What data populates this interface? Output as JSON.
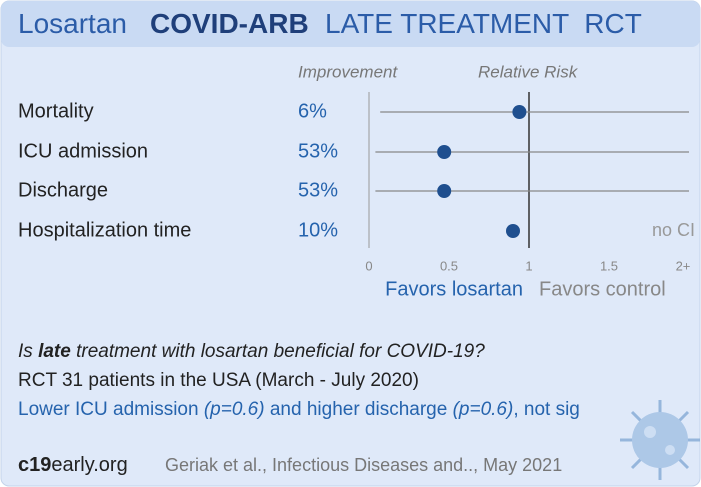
{
  "chart_data": {
    "type": "forest",
    "title": {
      "drug": "Losartan",
      "trial": "COVID-ARB",
      "rest": "LATE TREATMENT  RCT"
    },
    "column_headers": [
      "Improvement",
      "Relative Risk"
    ],
    "categories": [
      "Mortality",
      "ICU admission",
      "Discharge",
      "Hospitalization time"
    ],
    "improvements": [
      "6%",
      "53%",
      "53%",
      "10%"
    ],
    "values": [
      0.94,
      0.47,
      0.47,
      0.9
    ],
    "ci_low": [
      0.07,
      0.04,
      0.04,
      null
    ],
    "ci_high": [
      2,
      2,
      2,
      null
    ],
    "annotation": "no CI",
    "color": "#1f4f8f",
    "xlim": [
      0,
      2
    ],
    "xticks": [
      0,
      0.5,
      1,
      1.5,
      {
        "value": 2,
        "label": "2+"
      }
    ],
    "favors": [
      "Favors losartan",
      "Favors control"
    ]
  },
  "question": [
    "Is ",
    "late",
    " treatment with losartan beneficial for COVID-19?"
  ],
  "design": "RCT 31 patients in the USA (March - July 2020)",
  "summary": [
    "Lower ICU admission ",
    "(p=0.6)",
    " and higher discharge ",
    "(p=0.6)",
    ", not sig"
  ],
  "footer": {
    "brand_bold": "c19",
    "brand_rest": "early.org",
    "citation": "Geriak et al., Infectious Diseases and.., May 2021"
  }
}
